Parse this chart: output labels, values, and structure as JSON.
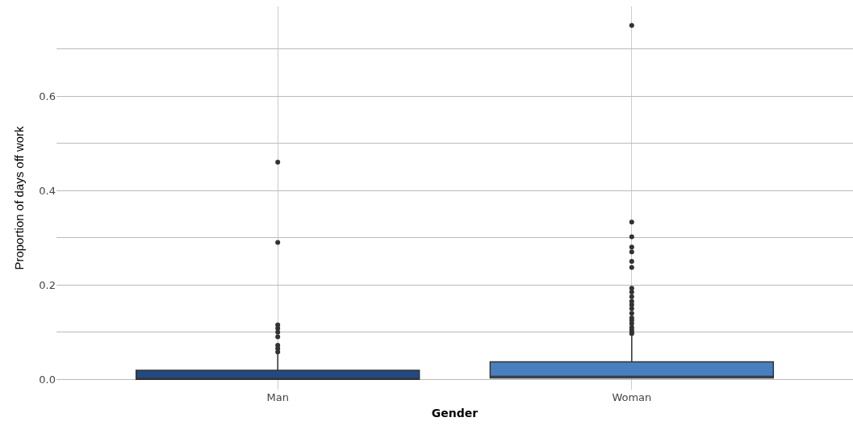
{
  "chart_data": {
    "type": "box",
    "xlabel": "Gender",
    "ylabel": "Proportion of days off work",
    "categories": [
      "Man",
      "Woman"
    ],
    "colors": [
      "#234a80",
      "#4a7fbf"
    ],
    "boxes": [
      {
        "q1": 0,
        "median": 0,
        "q3": 0.019,
        "high": 0.054,
        "outliers": [
          0.46,
          0.29,
          0.115,
          0.108,
          0.1,
          0.09,
          0.072,
          0.065,
          0.058
        ]
      },
      {
        "q1": 0.003,
        "median": 0.006,
        "q3": 0.037,
        "high": 0.092,
        "outliers": [
          0.75,
          0.333,
          0.302,
          0.28,
          0.27,
          0.25,
          0.237,
          0.193,
          0.185,
          0.175,
          0.165,
          0.158,
          0.15,
          0.14,
          0.13,
          0.125,
          0.118,
          0.11,
          0.105,
          0.1,
          0.097
        ]
      }
    ],
    "ylim": [
      -0.022,
      0.79
    ],
    "yticks": [
      {
        "value": 0,
        "label": "0.0"
      },
      {
        "value": 0.1,
        "label": null
      },
      0.2,
      {
        "value": 0.3,
        "label": null
      },
      0.4,
      {
        "value": 0.5,
        "label": null
      },
      0.6,
      {
        "value": 0.7,
        "label": null
      }
    ],
    "grid": true
  }
}
